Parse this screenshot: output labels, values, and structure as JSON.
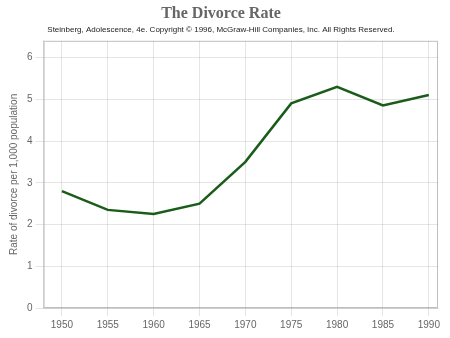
{
  "chart_data": {
    "type": "line",
    "title": "The Divorce Rate",
    "subtitle": "Steinberg, Adolescence, 4e. Copyright © 1996, McGraw-Hill Companies, Inc. All Rights Reserved.",
    "ylabel": "Rate of divorce per 1,000 population",
    "x": [
      1950,
      1955,
      1960,
      1965,
      1970,
      1975,
      1980,
      1985,
      1990
    ],
    "values": [
      2.8,
      2.35,
      2.25,
      2.5,
      3.5,
      4.9,
      5.3,
      4.85,
      5.1
    ],
    "color": "#1a5c1a",
    "xlim": [
      1948,
      1991
    ],
    "ylim": [
      0,
      6.4
    ],
    "xticks": [
      1950,
      1955,
      1960,
      1965,
      1970,
      1975,
      1980,
      1985,
      1990
    ],
    "yticks": [
      0,
      1,
      2,
      3,
      4,
      5,
      6
    ],
    "grid": true
  }
}
